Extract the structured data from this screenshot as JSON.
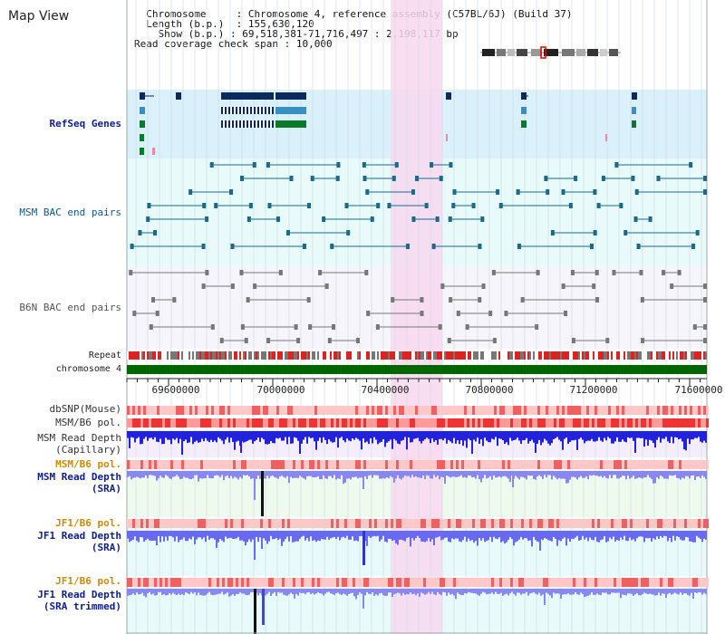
{
  "header": {
    "title": "Map View",
    "chromosome_key": "Chromosome",
    "chromosome_value": "Chromosome 4, reference assembly (C57BL/6J) (Build 37)",
    "length_key": "Length (b.p.)",
    "length_value": "155,630,120",
    "show_key": "Show (b.p.)",
    "show_value": "69,518,381-71,716,497 : 2,198,117 bp",
    "coverage_key": "Read coverage check span",
    "coverage_value": "10,000"
  },
  "tracks": {
    "refseq": "RefSeq Genes",
    "msm_bac": "MSM BAC end pairs",
    "b6n_bac": "B6N BAC end pairs",
    "repeat": "Repeat",
    "chromosome": "chromosome 4",
    "dbsnp": "dbSNP(Mouse)",
    "msm_b6_pol": "MSM/B6 pol.",
    "msm_depth_cap_1": "MSM Read Depth",
    "msm_depth_cap_2": "(Capillary)",
    "msm_b6_pol_2": "MSM/B6 pol.",
    "msm_depth_sra_1": "MSM Read Depth",
    "msm_depth_sra_2": "(SRA)",
    "jf1_b6_pol": "JF1/B6 pol.",
    "jf1_depth_sra_1": "JF1 Read Depth",
    "jf1_depth_sra_2": "(SRA)",
    "jf1_b6_pol_2": "JF1/B6 pol.",
    "jf1_depth_trim_1": "JF1 Read Depth",
    "jf1_depth_trim_2": "(SRA trimmed)"
  },
  "axis": {
    "ticks": [
      "69600000",
      "70000000",
      "70400000",
      "70800000",
      "71200000",
      "71600000"
    ]
  },
  "colors": {
    "refseq_bg": "#daf0fa",
    "msm_bac_bg": "#e8fafa",
    "b6n_bac_bg": "#f5f5fb",
    "highlight": "#f8d8f0",
    "chromosome_bar": "#006600",
    "depth_blue": "#2222dd",
    "depth_light": "#8888f0",
    "pol_red": "#ee3333",
    "pol_pink": "#ffbbbb"
  }
}
